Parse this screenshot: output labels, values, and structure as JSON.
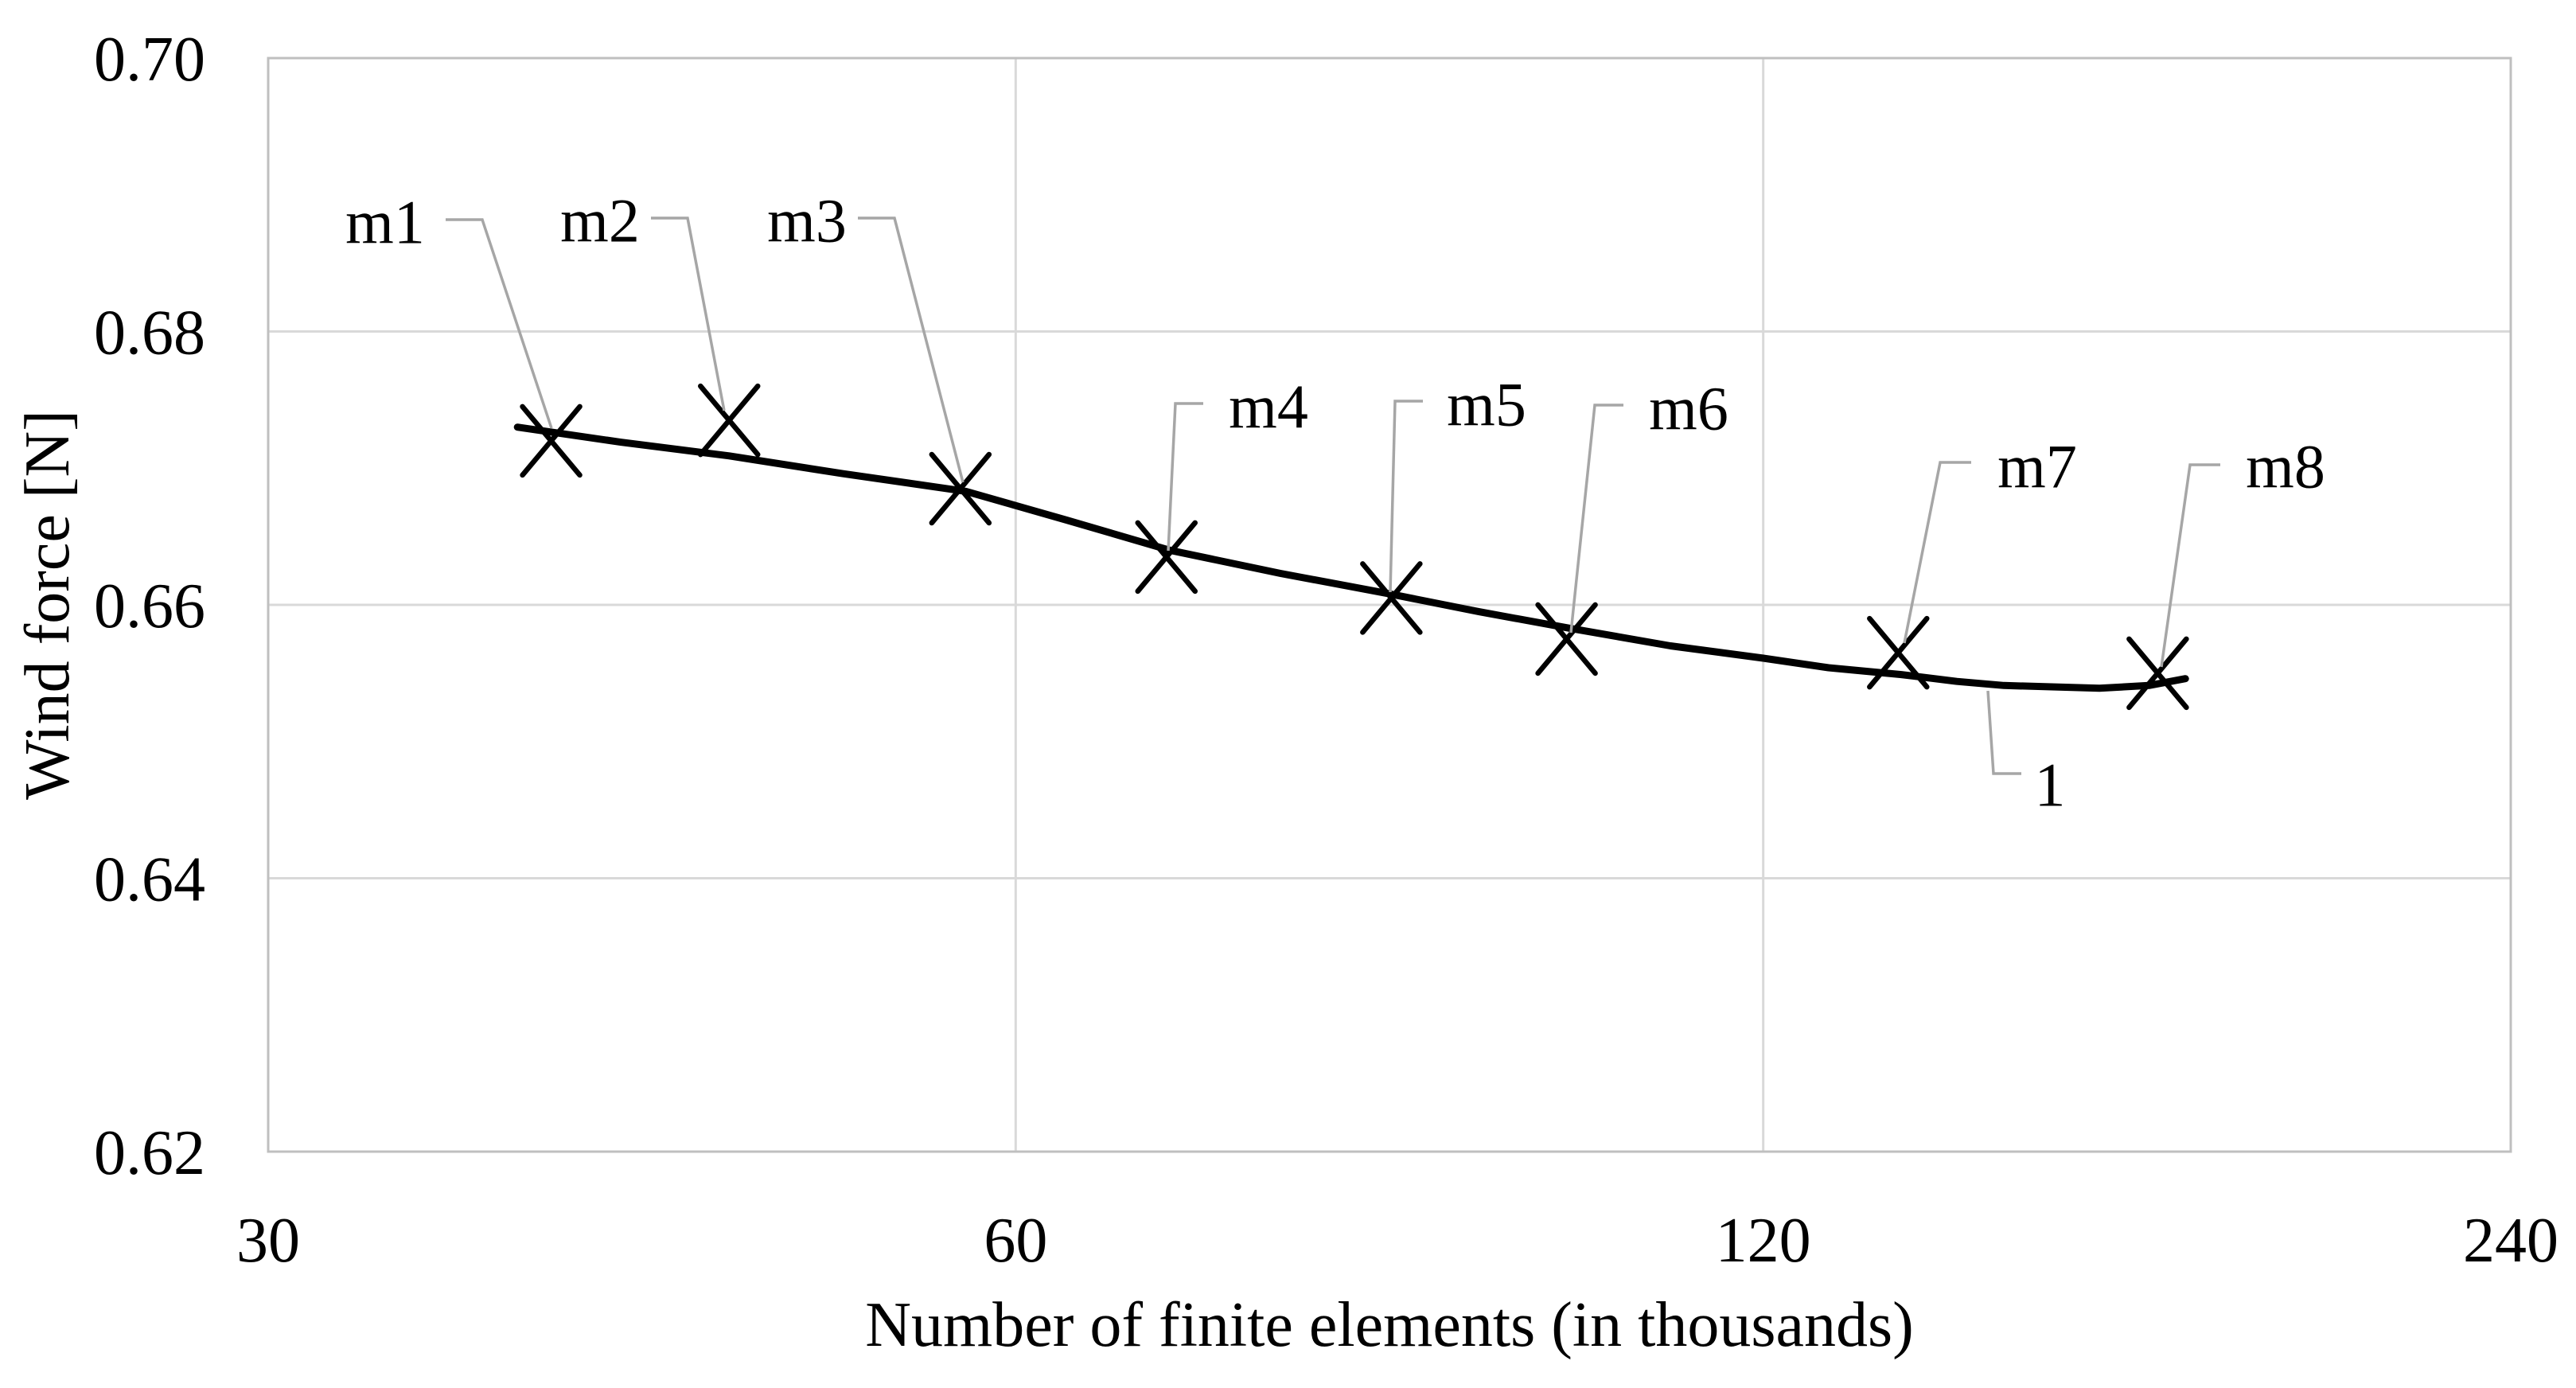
{
  "axes": {
    "x": {
      "title": "Number of finite elements (in thousands)",
      "ticks": [
        "30",
        "60",
        "120",
        "240"
      ],
      "scale": "log2"
    },
    "y": {
      "title": "Wind force [N]",
      "ticks": [
        "0.70",
        "0.68",
        "0.66",
        "0.64",
        "0.62"
      ],
      "scale": "linear"
    }
  },
  "colors": {
    "curve": "#000000",
    "marker": "#000000",
    "leader": "#a6a6a6",
    "grid": "#d9d9d9",
    "frame": "#bfbfbf",
    "text": "#000000"
  },
  "chart_data": {
    "type": "scatter",
    "title": "",
    "xlabel": "Number of finite elements (in thousands)",
    "ylabel": "Wind force [N]",
    "x_scale": "log2",
    "xlim": [
      30,
      240
    ],
    "ylim": [
      0.62,
      0.7
    ],
    "x_ticks": [
      30,
      60,
      120,
      240
    ],
    "y_ticks": [
      0.7,
      0.68,
      0.66,
      0.64,
      0.62
    ],
    "grid": true,
    "legend": "none",
    "points": [
      {
        "label": "m1",
        "x": 39,
        "y": 0.672
      },
      {
        "label": "m2",
        "x": 46,
        "y": 0.6735
      },
      {
        "label": "m3",
        "x": 57,
        "y": 0.6685
      },
      {
        "label": "m4",
        "x": 69,
        "y": 0.6635
      },
      {
        "label": "m5",
        "x": 85,
        "y": 0.6605
      },
      {
        "label": "m6",
        "x": 100,
        "y": 0.6575
      },
      {
        "label": "m7",
        "x": 136,
        "y": 0.6565
      },
      {
        "label": "m8",
        "x": 173,
        "y": 0.655
      }
    ],
    "series": [
      {
        "name": "1",
        "type": "fitted-curve",
        "x": [
          37.8,
          41.6,
          46.0,
          51.1,
          57.3,
          62.9,
          69.2,
          76.7,
          84.9,
          92.2,
          100.2,
          110.1,
          120.0,
          127.5,
          136.4,
          143.6,
          150.0,
          156.8,
          163.9,
          171.6,
          177.5
        ],
        "y": [
          0.673,
          0.6719,
          0.6709,
          0.6696,
          0.6683,
          0.6662,
          0.664,
          0.6623,
          0.6608,
          0.6595,
          0.6583,
          0.657,
          0.6561,
          0.6554,
          0.6549,
          0.6544,
          0.6541,
          0.654,
          0.6539,
          0.6541,
          0.6546
        ]
      }
    ]
  }
}
